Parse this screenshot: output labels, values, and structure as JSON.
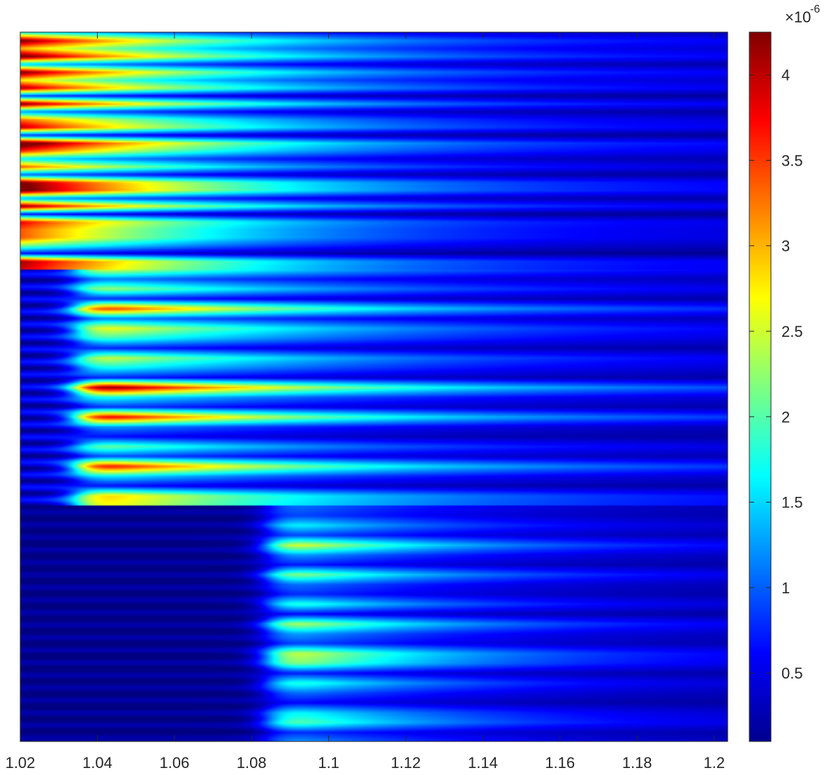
{
  "chart_data": {
    "type": "heatmap",
    "title": "",
    "xlabel": "",
    "ylabel": "",
    "xlim": [
      1.02,
      1.2035
    ],
    "x_ticks": [
      "1.02",
      "1.04",
      "1.06",
      "1.08",
      "1.1",
      "1.12",
      "1.14",
      "1.16",
      "1.18",
      "1.2"
    ],
    "x_tick_values": [
      1.02,
      1.04,
      1.06,
      1.08,
      1.1,
      1.12,
      1.14,
      1.16,
      1.18,
      1.2
    ],
    "y_ticks": [],
    "colormap": "jet",
    "colorbar": {
      "range": [
        0.1,
        4.25
      ],
      "ticks": [
        "0.5",
        "1",
        "1.5",
        "2",
        "2.5",
        "3",
        "3.5",
        "4"
      ],
      "tick_values": [
        0.5,
        1,
        1.5,
        2,
        2.5,
        3,
        3.5,
        4
      ],
      "multiplier": "×10",
      "exponent": "-6"
    },
    "bands": [
      {
        "name": "",
        "rows_top_to_bottom": [
          1.6,
          3.9,
          2.6,
          4.0,
          1.2,
          3.9,
          2.4,
          3.7,
          0.7,
          3.9,
          1.0,
          2.9,
          3.6,
          0.6,
          4.2,
          3.2,
          1.4,
          3.0,
          0.8,
          3.9,
          4.0,
          1.1,
          3.8,
          0.5,
          3.4,
          3.0,
          3.0,
          1.9,
          0.5,
          3.7,
          3.5
        ],
        "left_to_right_decay": "strong at x≈1.02, fading toward 1.2"
      },
      {
        "name": "",
        "onset_x": 1.035,
        "rows_top_to_bottom": [
          2.5,
          1.0,
          2.2,
          0.6,
          3.5,
          1.0,
          2.6,
          1.8,
          0.6,
          2.4,
          1.6,
          0.6,
          4.2,
          1.6,
          0.7,
          3.8,
          1.1,
          0.5,
          2.0,
          0.8,
          3.7,
          1.5,
          0.5,
          2.8,
          2.6
        ],
        "left_to_right_decay": "peaks near x≈1.04, fades slowly"
      },
      {
        "name": "",
        "onset_x": 1.085,
        "rows_top_to_bottom": [
          1.0,
          0.8,
          1.6,
          0.8,
          2.6,
          1.2,
          0.6,
          2.2,
          1.0,
          0.7,
          1.8,
          0.5,
          2.4,
          1.2,
          0.8,
          2.5,
          2.2,
          0.6,
          1.8,
          1.0,
          0.5,
          1.6,
          2.0,
          0.7,
          1.2
        ],
        "left_to_right_decay": "near-zero left of x≈1.07, peaks near x≈1.09–1.10"
      }
    ]
  }
}
